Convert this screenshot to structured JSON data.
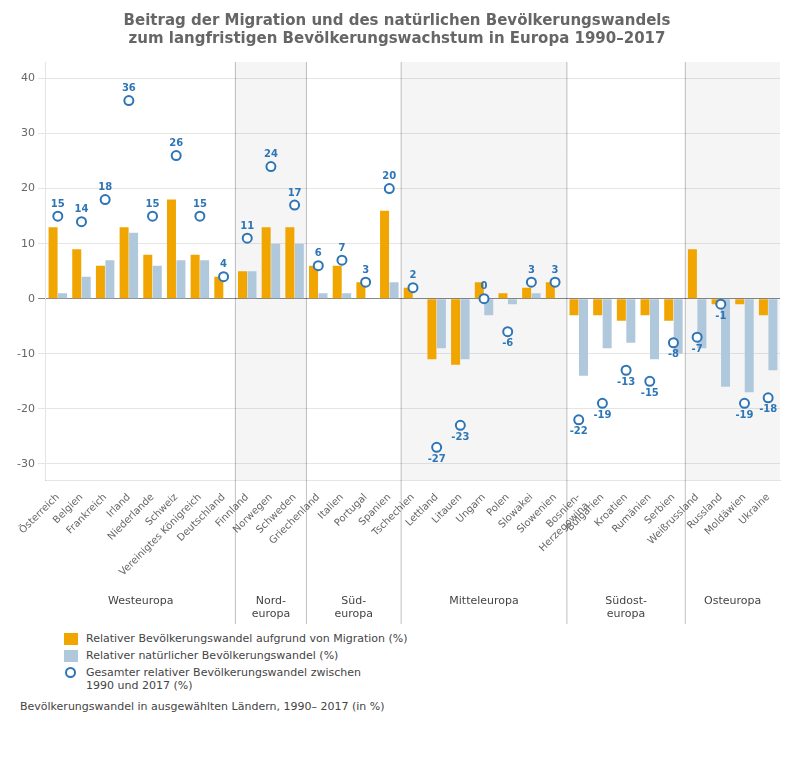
{
  "chart_data": {
    "type": "bar",
    "title": "Beitrag der Migration und des natürlichen Bevölkerungswandels\nzum langfristigen Bevölkerungswachstum in Europa 1990–2017",
    "footnote": "Bevölkerungswandel in ausgewählten Ländern, 1990– 2017 (in %)",
    "categories": [
      "Österreich",
      "Belgien",
      "Frankreich",
      "Irland",
      "Niederlande",
      "Schweiz",
      "Vereinigtes Königreich",
      "Deutschland",
      "Finnland",
      "Norwegen",
      "Schweden",
      "Griechenland",
      "Italien",
      "Portugal",
      "Spanien",
      "Tschechien",
      "Lettland",
      "Litauen",
      "Ungarn",
      "Polen",
      "Slowakei",
      "Slowenien",
      "Bosnien-\nHerzegowina",
      "Bulgarien",
      "Kroatien",
      "Rumänien",
      "Serbien",
      "Weißrussland",
      "Russland",
      "Moldäwien",
      "Ukraine"
    ],
    "series": [
      {
        "name": "Relativer Bevölkerungswandel aufgrund von Migration (%)",
        "type": "bar",
        "color": "#f0a500",
        "values": [
          13,
          9,
          6,
          13,
          8,
          18,
          8,
          4,
          5,
          13,
          13,
          6,
          6,
          3,
          16,
          2,
          -11,
          -12,
          3,
          1,
          2,
          3,
          -3,
          -3,
          -4,
          -3,
          -4,
          9,
          -1,
          -1,
          -3
        ]
      },
      {
        "name": "Relativer natürlicher Bevölkerungswandel (%)",
        "type": "bar",
        "color": "#b0c8dc",
        "values": [
          1,
          4,
          7,
          12,
          6,
          7,
          7,
          0,
          5,
          10,
          10,
          1,
          1,
          0,
          3,
          0,
          -9,
          -11,
          -3,
          -1,
          1,
          0,
          -14,
          -9,
          -8,
          -11,
          -10,
          -9,
          -16,
          -17,
          -13
        ]
      },
      {
        "name": "Gesamter relativer Bevölkerungswandel zwischen\n1990 und 2017 (%)",
        "type": "scatter",
        "marker": "circle",
        "color": "#2e75b6",
        "data_labels": true,
        "values": [
          15,
          14,
          18,
          36,
          15,
          26,
          15,
          4,
          11,
          24,
          17,
          6,
          7,
          3,
          20,
          2,
          -27,
          -23,
          0,
          -6,
          3,
          3,
          -22,
          -19,
          -13,
          -15,
          -8,
          -7,
          -1,
          -19,
          -18
        ]
      }
    ],
    "annotations": [
      {
        "text": "Westeuropa",
        "from": "Österreich",
        "to": "Deutschland"
      },
      {
        "text": "Nord-\neuropa",
        "from": "Finnland",
        "to": "Schweden"
      },
      {
        "text": "Süd-\neuropa",
        "from": "Griechenland",
        "to": "Spanien"
      },
      {
        "text": "Mitteleuropa",
        "from": "Tschechien",
        "to": "Slowenien"
      },
      {
        "text": "Südost-\neuropa",
        "from": "Bosnien-\nHerzegowina",
        "to": "Serbien"
      },
      {
        "text": "Osteuropa",
        "from": "Weißrussland",
        "to": "Ukraine"
      }
    ],
    "ylim": [
      -33,
      43
    ],
    "yticks": [
      -30,
      -20,
      -10,
      0,
      10,
      20,
      30,
      40
    ],
    "grid": true,
    "legend": "lower left"
  }
}
